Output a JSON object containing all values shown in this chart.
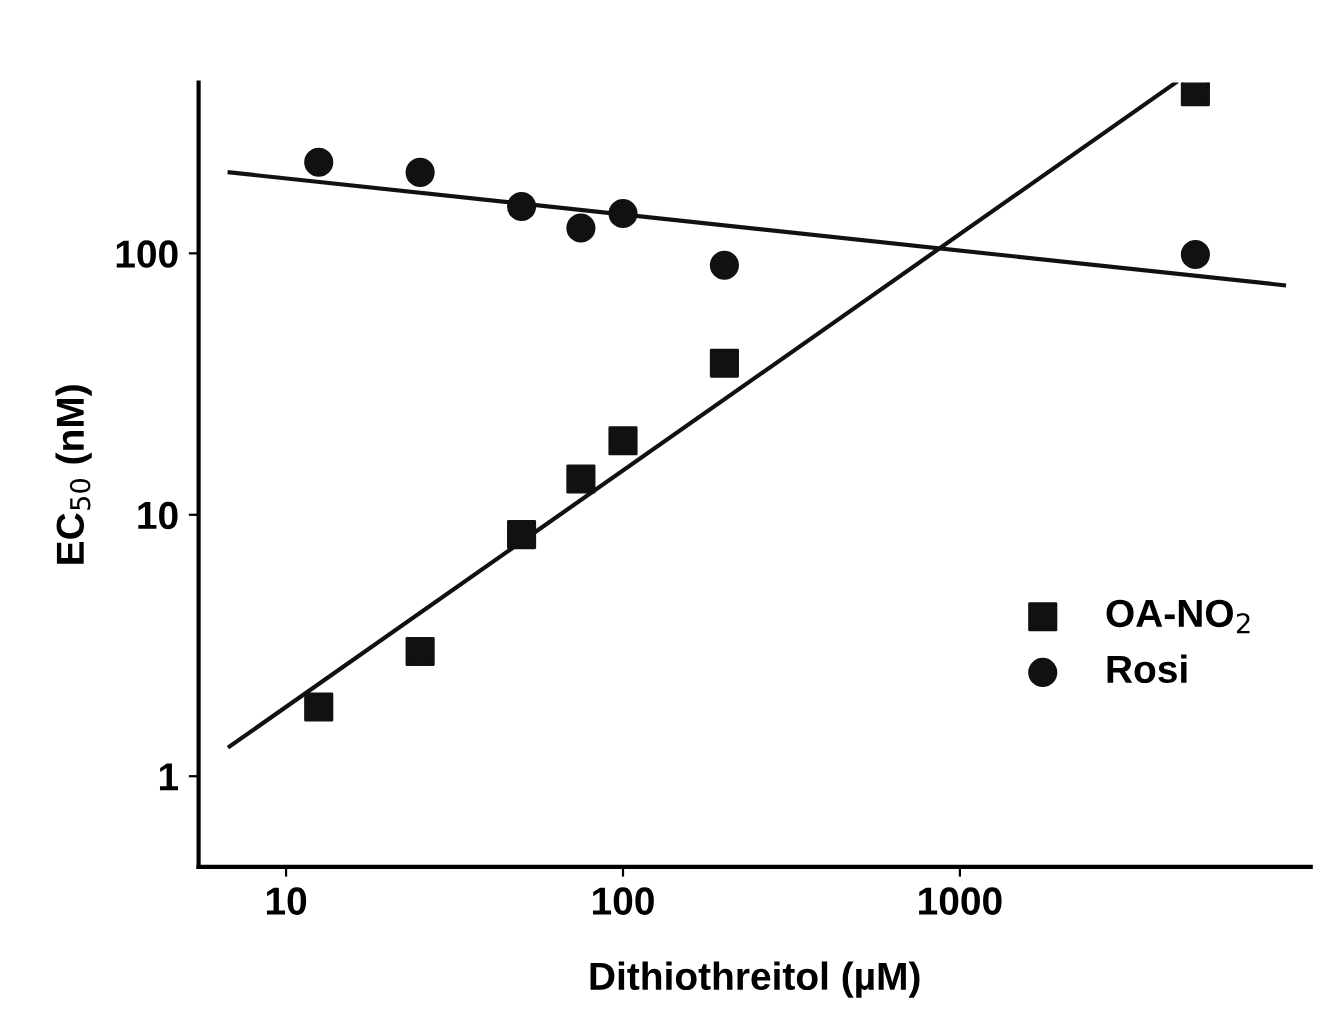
{
  "chart_data": {
    "type": "scatter",
    "xlabel": "Dithiothreitol (µM)",
    "ylabel": "EC$_{50}$ (nM)",
    "log": "xy",
    "xlim": [
      5.5,
      11000
    ],
    "ylim": [
      0.45,
      450
    ],
    "xticks": [
      10,
      100,
      1000
    ],
    "yticks": [
      1,
      10,
      100
    ],
    "grid": false,
    "legend": "lower right",
    "series": [
      {
        "name": "OA-NO$_{2}$",
        "color": "#111111",
        "marker": "square",
        "x": [
          12.5,
          25,
          50,
          75,
          100,
          200,
          5000
        ],
        "values": [
          1.84,
          3.0,
          8.4,
          13.7,
          19.2,
          38,
          415
        ]
      },
      {
        "name": "Rosi",
        "color": "#111111",
        "marker": "circle",
        "x": [
          12.5,
          25,
          50,
          75,
          100,
          200,
          5000
        ],
        "values": [
          223,
          204,
          151,
          125,
          142,
          90,
          99
        ]
      },
      {
        "type": "line",
        "color": "#111111",
        "marker": "none",
        "line_style": "solid",
        "x": [
          6.8,
          4375
        ],
        "values": [
          1.3,
          450
        ]
      },
      {
        "type": "line",
        "color": "#111111",
        "marker": "none",
        "line_style": "solid",
        "x": [
          6.8,
          9160
        ],
        "values": [
          204,
          75.5
        ]
      }
    ]
  }
}
